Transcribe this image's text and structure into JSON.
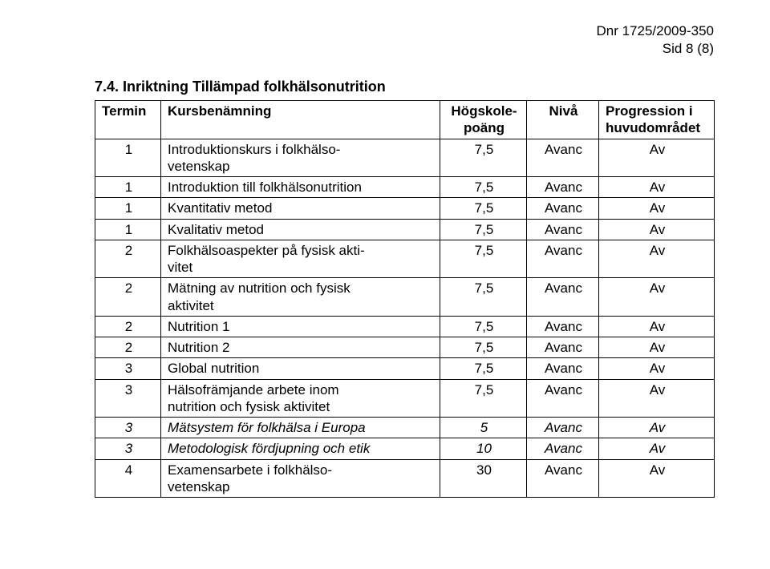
{
  "header": {
    "dnr": "Dnr 1725/2009-350",
    "page_label": "Sid 8 (8)"
  },
  "section": {
    "number": "7.4.",
    "title": "Inriktning Tillämpad folkhälsonutrition"
  },
  "table": {
    "columns": {
      "termin": "Termin",
      "kurs": "Kursbenämning",
      "poang_line1": "Högskole-",
      "poang_line2": "poäng",
      "niva": "Nivå",
      "prog_line1": "Progression i",
      "prog_line2": "huvudområdet"
    },
    "rows": [
      {
        "termin": "1",
        "kurs_line1": "Introduktionskurs i folkhälso-",
        "kurs_line2": "vetenskap",
        "poang": "7,5",
        "niva": "Avanc",
        "prog": "Av",
        "italic": false
      },
      {
        "termin": "1",
        "kurs_line1": "Introduktion till folkhälsonutrition",
        "kurs_line2": "",
        "poang": "7,5",
        "niva": "Avanc",
        "prog": "Av",
        "italic": false
      },
      {
        "termin": "1",
        "kurs_line1": "Kvantitativ metod",
        "kurs_line2": "",
        "poang": "7,5",
        "niva": "Avanc",
        "prog": "Av",
        "italic": false
      },
      {
        "termin": "1",
        "kurs_line1": "Kvalitativ metod",
        "kurs_line2": "",
        "poang": "7,5",
        "niva": "Avanc",
        "prog": "Av",
        "italic": false
      },
      {
        "termin": "2",
        "kurs_line1": "Folkhälsoaspekter på fysisk akti-",
        "kurs_line2": "vitet",
        "poang": "7,5",
        "niva": "Avanc",
        "prog": "Av",
        "italic": false
      },
      {
        "termin": "2",
        "kurs_line1": "Mätning av nutrition och fysisk",
        "kurs_line2": "aktivitet",
        "poang": "7,5",
        "niva": "Avanc",
        "prog": "Av",
        "italic": false
      },
      {
        "termin": "2",
        "kurs_line1": "Nutrition 1",
        "kurs_line2": "",
        "poang": "7,5",
        "niva": "Avanc",
        "prog": "Av",
        "italic": false
      },
      {
        "termin": "2",
        "kurs_line1": "Nutrition 2",
        "kurs_line2": "",
        "poang": "7,5",
        "niva": "Avanc",
        "prog": "Av",
        "italic": false
      },
      {
        "termin": "3",
        "kurs_line1": "Global nutrition",
        "kurs_line2": "",
        "poang": "7,5",
        "niva": "Avanc",
        "prog": "Av",
        "italic": false
      },
      {
        "termin": "3",
        "kurs_line1": "Hälsofrämjande arbete inom",
        "kurs_line2": "nutrition och fysisk aktivitet",
        "poang": "7,5",
        "niva": "Avanc",
        "prog": "Av",
        "italic": false
      },
      {
        "termin": "3",
        "kurs_line1": "Mätsystem för folkhälsa i Europa",
        "kurs_line2": "",
        "poang": "5",
        "niva": "Avanc",
        "prog": "Av",
        "italic": true
      },
      {
        "termin": "3",
        "kurs_line1": "Metodologisk fördjupning och etik",
        "kurs_line2": "",
        "poang": "10",
        "niva": "Avanc",
        "prog": "Av",
        "italic": true
      },
      {
        "termin": "4",
        "kurs_line1": "Examensarbete i folkhälso-",
        "kurs_line2": "vetenskap",
        "poang": "30",
        "niva": "Avanc",
        "prog": "Av",
        "italic": false
      }
    ]
  }
}
